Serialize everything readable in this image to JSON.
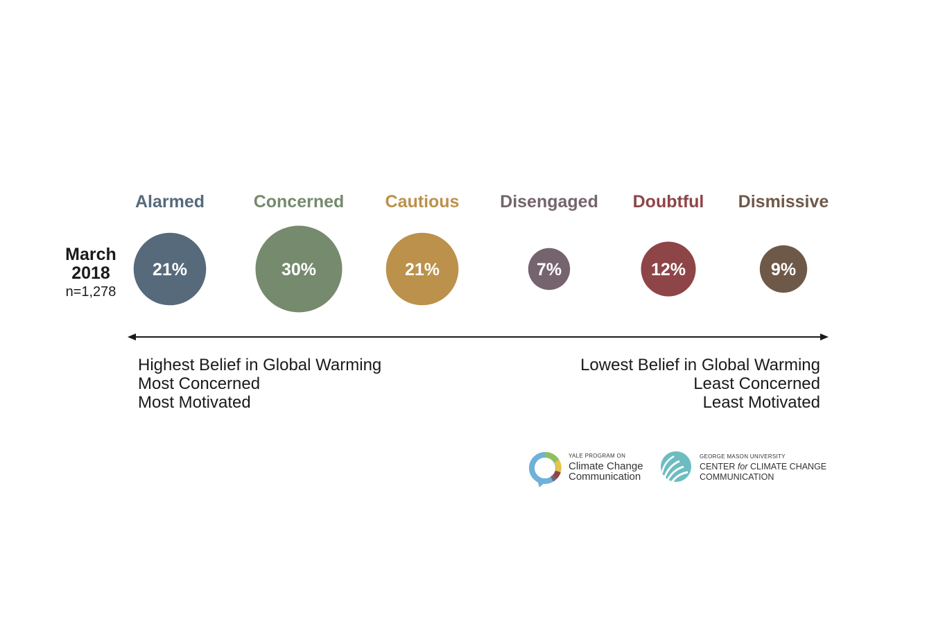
{
  "chart_data": {
    "type": "bubble",
    "period": {
      "line1": "March",
      "line2": "2018",
      "sample": "n=1,278"
    },
    "categories": [
      "Alarmed",
      "Concerned",
      "Cautious",
      "Disengaged",
      "Doubtful",
      "Dismissive"
    ],
    "values": [
      21,
      30,
      21,
      7,
      12,
      9
    ],
    "value_labels": [
      "21%",
      "30%",
      "21%",
      "7%",
      "12%",
      "9%"
    ],
    "colors": [
      "#566a7b",
      "#768a6e",
      "#bb914b",
      "#75646d",
      "#8e4547",
      "#6e5949"
    ],
    "left_description": [
      "Highest Belief in Global Warming",
      "Most Concerned",
      "Most Motivated"
    ],
    "right_description": [
      "Lowest Belief in Global Warming",
      "Least Concerned",
      "Least Motivated"
    ]
  },
  "logos": {
    "yale": {
      "small": "YALE PROGRAM ON",
      "line1": "Climate Change",
      "line2": "Communication"
    },
    "gmu": {
      "small": "GEORGE MASON UNIVERSITY",
      "line1a": "CENTER ",
      "line1b": "for",
      "line1c": " CLIMATE CHANGE",
      "line2": "COMMUNICATION"
    }
  }
}
